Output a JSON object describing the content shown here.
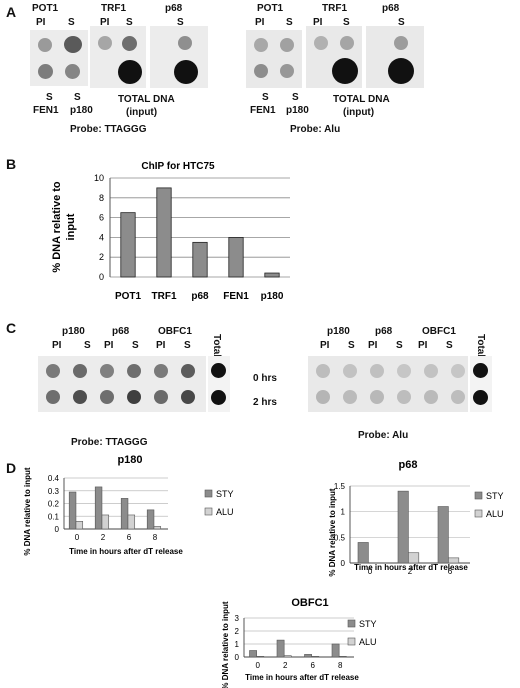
{
  "panelA": {
    "letter": "A",
    "left": {
      "cols": [
        "POT1",
        "TRF1",
        "p68"
      ],
      "sub1": [
        "PI",
        "S"
      ],
      "sub2": [
        "PI",
        "S"
      ],
      "sub3": [
        "S"
      ],
      "bottom_left_top": "S",
      "bottom_left_bottom": "FEN1",
      "bottom_mid_top": "S",
      "bottom_mid_bottom": "p180",
      "total1": "TOTAL DNA",
      "total2": "(input)",
      "probe": "Probe:  TTAGGG"
    },
    "right": {
      "cols": [
        "POT1",
        "TRF1",
        "p68"
      ],
      "sub1": [
        "PI",
        "S"
      ],
      "sub2": [
        "PI",
        "S"
      ],
      "sub3": [
        "S"
      ],
      "bottom_left_top": "S",
      "bottom_left_bottom": "FEN1",
      "bottom_mid_top": "S",
      "bottom_mid_bottom": "p180",
      "total1": "TOTAL DNA",
      "total2": "(input)",
      "probe": "Probe:  Alu"
    }
  },
  "panelB": {
    "letter": "B"
  },
  "panelC": {
    "letter": "C",
    "left": {
      "groups": [
        "p180",
        "p68",
        "OBFC1"
      ],
      "lanes": [
        "PI",
        "S",
        "PI",
        "S",
        "PI",
        "S"
      ],
      "total": "Total",
      "probe": "Probe:  TTAGGG"
    },
    "right": {
      "groups": [
        "p180",
        "p68",
        "OBFC1"
      ],
      "lanes": [
        "PI",
        "S",
        "PI",
        "S",
        "PI",
        "S"
      ],
      "total": "Total",
      "probe": "Probe:  Alu"
    },
    "times": [
      "0 hrs",
      "2 hrs"
    ]
  },
  "panelD": {
    "letter": "D"
  },
  "chart_data": [
    {
      "type": "bar",
      "title": "ChIP for HTC75",
      "ylabel": "% DNA relative to input",
      "categories": [
        "POT1",
        "TRF1",
        "p68",
        "FEN1",
        "p180"
      ],
      "values": [
        6.5,
        9,
        3.5,
        4,
        0.4
      ],
      "ylim": [
        0,
        10
      ],
      "yticks": [
        "0",
        "2",
        "4",
        "6",
        "8",
        "10"
      ],
      "color": "#8c8c8c"
    },
    {
      "type": "bar",
      "title": "p180",
      "ylabel": "% DNA relative to input",
      "xlabel": "Time in hours after dT release",
      "categories": [
        "0",
        "2",
        "6",
        "8"
      ],
      "series": [
        {
          "name": "STY",
          "values": [
            0.29,
            0.33,
            0.24,
            0.15
          ],
          "color": "#8c8c8c"
        },
        {
          "name": "ALU",
          "values": [
            0.06,
            0.11,
            0.11,
            0.02
          ],
          "color": "#d2d2d2"
        }
      ],
      "ylim": [
        0,
        0.4
      ],
      "yticks": [
        "0",
        "0.1",
        "0.2",
        "0.3",
        "0.4"
      ]
    },
    {
      "type": "bar",
      "title": "p68",
      "ylabel": "% DNA relative to input",
      "xlabel": "Time in hours after dT release",
      "categories": [
        "0",
        "2",
        "6"
      ],
      "series": [
        {
          "name": "STY",
          "values": [
            0.4,
            1.4,
            1.1
          ],
          "color": "#8c8c8c"
        },
        {
          "name": "ALU",
          "values": [
            0,
            0.2,
            0.1
          ],
          "color": "#d2d2d2"
        }
      ],
      "ylim": [
        0,
        1.5
      ],
      "yticks": [
        "0",
        "0.5",
        "1",
        "1.5"
      ]
    },
    {
      "type": "bar",
      "title": "OBFC1",
      "ylabel": "% DNA relative to input",
      "xlabel": "Time in hours after dT release",
      "categories": [
        "0",
        "2",
        "6",
        "8"
      ],
      "series": [
        {
          "name": "STY",
          "values": [
            0.5,
            1.3,
            0.2,
            1.0
          ],
          "color": "#8c8c8c"
        },
        {
          "name": "ALU",
          "values": [
            0.05,
            0.1,
            0.05,
            0.05
          ],
          "color": "#d2d2d2"
        }
      ],
      "ylim": [
        0,
        3
      ],
      "yticks": [
        "0",
        "1",
        "2",
        "3"
      ]
    }
  ]
}
